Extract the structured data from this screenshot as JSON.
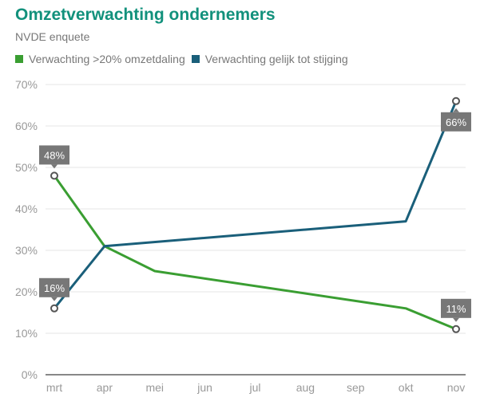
{
  "chart_data": {
    "type": "line",
    "title": "Omzetverwachting ondernemers",
    "subtitle": "NVDE enquete",
    "categories": [
      "mrt",
      "apr",
      "mei",
      "jun",
      "jul",
      "aug",
      "sep",
      "okt",
      "nov"
    ],
    "yticks": [
      "0%",
      "10%",
      "20%",
      "30%",
      "40%",
      "50%",
      "60%",
      "70%"
    ],
    "ylim": [
      0,
      70
    ],
    "legend_position": "top-left",
    "series": [
      {
        "name": "Verwachting >20% omzetdaling",
        "color": "#3a9e32",
        "values": [
          48,
          31,
          25,
          null,
          null,
          null,
          null,
          16,
          11
        ],
        "labels": {
          "0": "48%",
          "8": "11%"
        }
      },
      {
        "name": "Verwachting gelijk tot stijging",
        "color": "#1a5f7a",
        "values": [
          16,
          31,
          null,
          null,
          null,
          null,
          null,
          37,
          66
        ],
        "labels": {
          "0": "16%",
          "8": "66%"
        }
      }
    ]
  }
}
